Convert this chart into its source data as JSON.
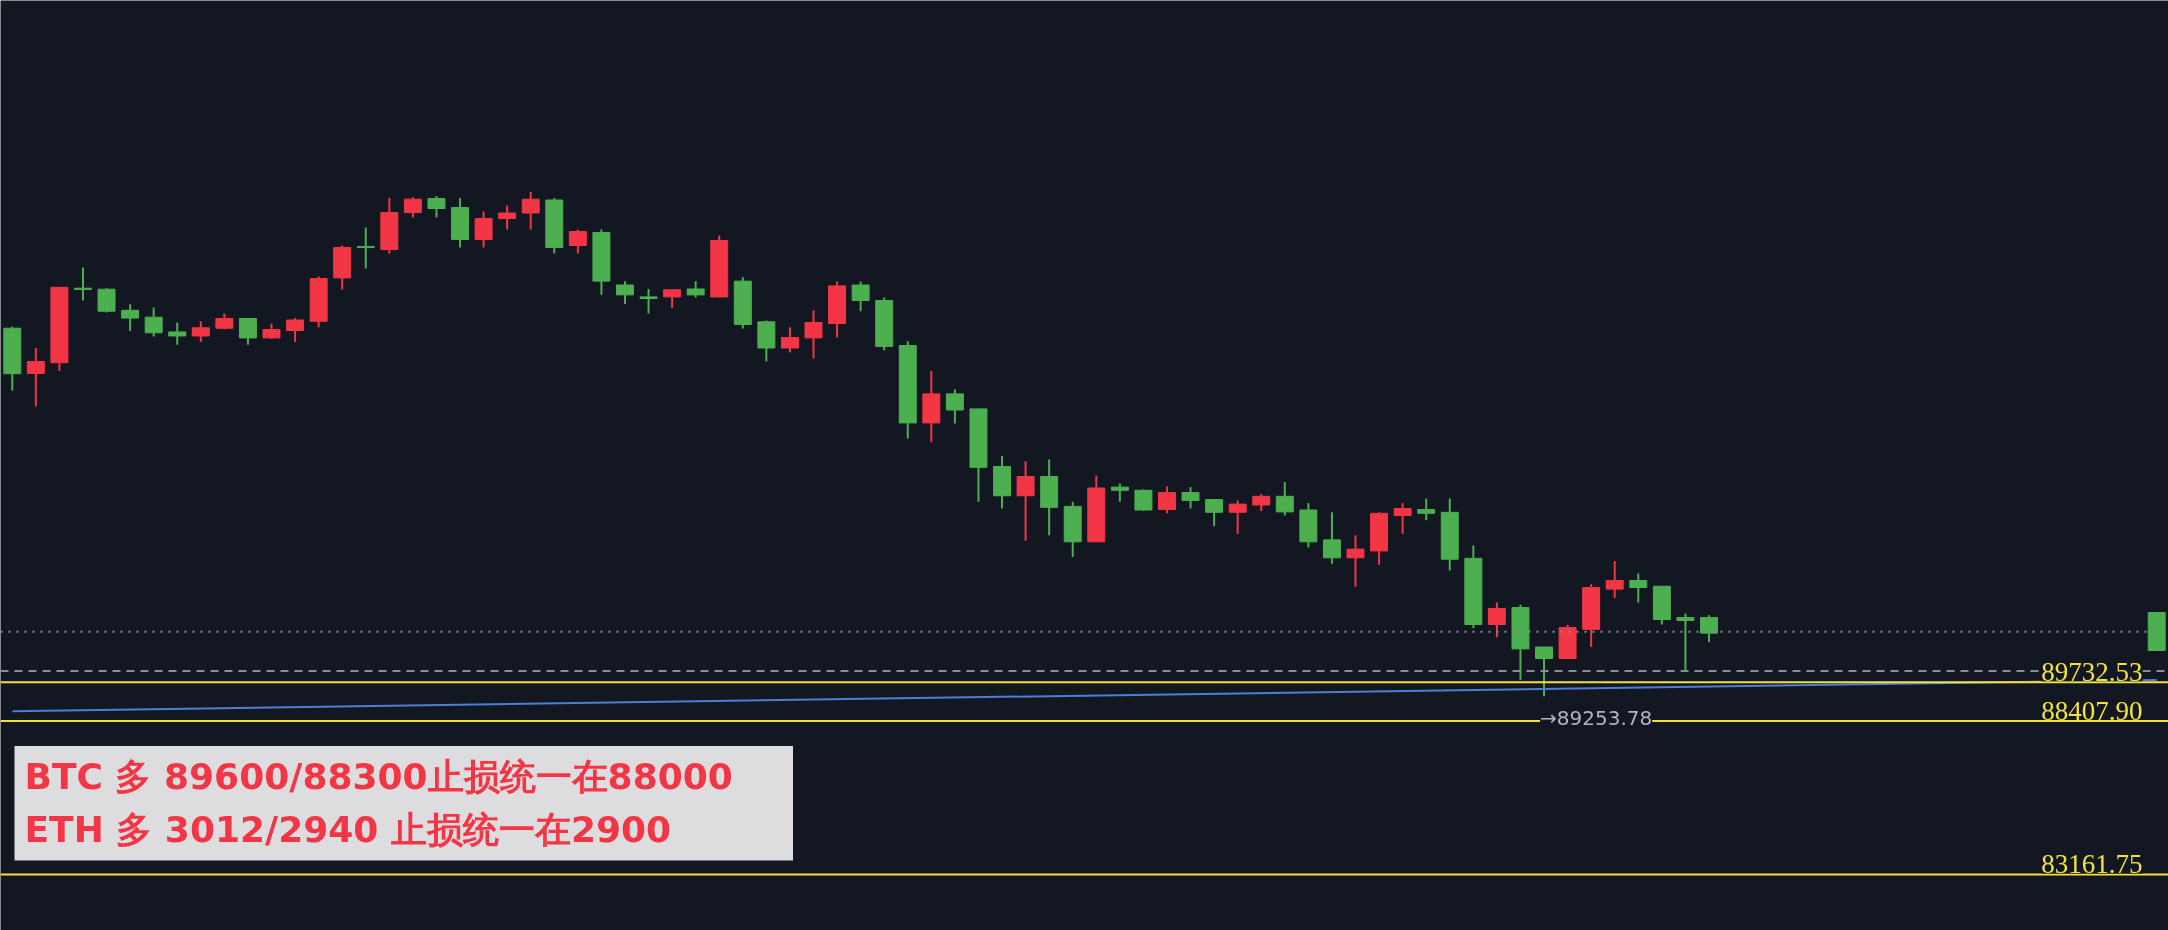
{
  "chart_data": {
    "type": "candlestick",
    "tick_labels": false,
    "ylim": [
      81243,
      113049
    ],
    "categories": [
      null,
      null,
      null,
      null,
      null,
      null,
      null,
      null,
      null,
      null,
      null,
      null,
      null,
      null,
      null,
      null,
      null,
      null,
      null,
      null,
      null,
      null,
      null,
      null,
      null,
      null,
      null,
      null,
      null,
      null,
      null,
      null,
      null,
      null,
      null,
      null,
      null,
      null,
      null,
      null,
      null,
      null,
      null,
      null,
      null,
      null,
      null,
      null,
      null,
      null,
      null,
      null,
      null,
      null,
      null,
      null,
      null,
      null,
      null,
      null,
      null,
      null,
      null,
      null,
      null,
      null,
      null,
      null,
      null,
      null,
      null,
      null,
      null,
      null,
      null,
      null,
      null,
      null,
      null,
      null,
      null,
      null,
      null,
      null,
      null,
      null,
      null,
      null,
      null,
      null,
      null,
      null
    ],
    "ohlc": [
      [
        101842,
        101900,
        99704,
        100286
      ],
      [
        100293,
        101164,
        99164,
        100703
      ],
      [
        100662,
        103240,
        100378,
        103240
      ],
      [
        103210,
        103918,
        102789,
        103165
      ],
      [
        103175,
        103210,
        102379,
        102423
      ],
      [
        102454,
        102659,
        101746,
        102187
      ],
      [
        102218,
        102550,
        101558,
        101684
      ],
      [
        101715,
        102037,
        101274,
        101575
      ],
      [
        101575,
        102078,
        101370,
        101855
      ],
      [
        101842,
        102344,
        101797,
        102173
      ],
      [
        102173,
        102187,
        101274,
        101510
      ],
      [
        101510,
        102002,
        101479,
        101797
      ],
      [
        101763,
        102187,
        101370,
        102122
      ],
      [
        102078,
        103610,
        101872,
        103541
      ],
      [
        103562,
        104670,
        103165,
        104602
      ],
      [
        104636,
        105286,
        103883,
        104602
      ],
      [
        104533,
        106294,
        104396,
        105799
      ],
      [
        105799,
        106322,
        105628,
        106253
      ],
      [
        106277,
        106363,
        105628,
        105935
      ],
      [
        105970,
        106294,
        104602,
        104875
      ],
      [
        104875,
        105833,
        104602,
        105593
      ],
      [
        105593,
        106038,
        105217,
        105781
      ],
      [
        105781,
        106500,
        105217,
        106253
      ],
      [
        106226,
        106294,
        104396,
        104602
      ],
      [
        104670,
        105217,
        104396,
        105149
      ],
      [
        105115,
        105217,
        102981,
        103452
      ],
      [
        103319,
        103452,
        102669,
        102981
      ],
      [
        102912,
        103182,
        102344,
        102857
      ],
      [
        102912,
        103182,
        102532,
        103155
      ],
      [
        103182,
        103452,
        102892,
        102981
      ],
      [
        102912,
        105012,
        102892,
        104841
      ],
      [
        103452,
        103589,
        101831,
        101968
      ],
      [
        102061,
        102105,
        100703,
        101164
      ],
      [
        101164,
        101872,
        101011,
        101524
      ],
      [
        101510,
        102454,
        100805,
        102037
      ],
      [
        102002,
        103439,
        101524,
        103288
      ],
      [
        103319,
        103439,
        102423,
        102789
      ],
      [
        102789,
        102892,
        101086,
        101216
      ],
      [
        101250,
        101400,
        98069,
        98603
      ],
      [
        98603,
        100378,
        97943,
        99595
      ],
      [
        99595,
        99752,
        98582,
        99044
      ],
      [
        99082,
        99082,
        95905,
        97084
      ],
      [
        97112,
        97478,
        95675,
        96110
      ],
      [
        96110,
        97290,
        94571,
        96770
      ],
      [
        96770,
        97351,
        94759,
        95716
      ],
      [
        95747,
        95905,
        94020,
        94537
      ],
      [
        94537,
        96804,
        94537,
        96376
      ],
      [
        96407,
        96530,
        95905,
        96298
      ],
      [
        96298,
        96329,
        95590,
        95624
      ],
      [
        95641,
        96428,
        95511,
        96223
      ],
      [
        96223,
        96407,
        95675,
        95949
      ],
      [
        95983,
        95983,
        95073,
        95545
      ],
      [
        95545,
        95949,
        94807,
        95826
      ],
      [
        95795,
        96171,
        95590,
        96093
      ],
      [
        96093,
        96582,
        95436,
        95559
      ],
      [
        95624,
        95860,
        94342,
        94537
      ],
      [
        94602,
        95545,
        93784,
        93989
      ],
      [
        93989,
        94759,
        92998,
        94287
      ],
      [
        94225,
        95545,
        93753,
        95511
      ],
      [
        95436,
        95860,
        94807,
        95675
      ],
      [
        95641,
        96017,
        95279,
        95511
      ],
      [
        95545,
        96017,
        93555,
        93941
      ],
      [
        93972,
        94410,
        91585,
        91708
      ],
      [
        91708,
        92461,
        91274,
        92255
      ],
      [
        92290,
        92382,
        89817,
        90874
      ],
      [
        90939,
        90939,
        89253.78,
        90545
      ],
      [
        90545,
        91695,
        90545,
        91606
      ],
      [
        91544,
        93086,
        90939,
        92974
      ],
      [
        92919,
        93873,
        92614,
        93213
      ],
      [
        93213,
        93452,
        92461,
        92974
      ],
      [
        93018,
        93018,
        91708,
        91879
      ],
      [
        91948,
        92084,
        90101,
        91845
      ],
      [
        91948,
        92030,
        91106,
        91411
      ],
      null,
      null,
      null,
      null,
      null,
      null,
      null,
      null,
      null,
      null,
      null,
      null,
      null,
      null,
      null,
      null,
      null,
      null,
      [
        92119,
        92119,
        90819,
        90819
      ]
    ],
    "colors": [
      "#4caf50",
      "#f23645",
      "#f23645",
      "#4caf50",
      "#4caf50",
      "#4caf50",
      "#4caf50",
      "#4caf50",
      "#f23645",
      "#f23645",
      "#4caf50",
      "#f23645",
      "#f23645",
      "#f23645",
      "#f23645",
      "#4caf50",
      "#f23645",
      "#f23645",
      "#4caf50",
      "#4caf50",
      "#f23645",
      "#f23645",
      "#f23645",
      "#4caf50",
      "#f23645",
      "#4caf50",
      "#4caf50",
      "#4caf50",
      "#f23645",
      "#4caf50",
      "#f23645",
      "#4caf50",
      "#4caf50",
      "#f23645",
      "#f23645",
      "#f23645",
      "#4caf50",
      "#4caf50",
      "#4caf50",
      "#f23645",
      "#4caf50",
      "#4caf50",
      "#4caf50",
      "#f23645",
      "#4caf50",
      "#4caf50",
      "#f23645",
      "#4caf50",
      "#4caf50",
      "#f23645",
      "#4caf50",
      "#4caf50",
      "#f23645",
      "#f23645",
      "#4caf50",
      "#4caf50",
      "#4caf50",
      "#f23645",
      "#f23645",
      "#f23645",
      "#4caf50",
      "#4caf50",
      "#4caf50",
      "#f23645",
      "#4caf50",
      "#4caf50",
      "#f23645",
      "#f23645",
      "#f23645",
      "#4caf50",
      "#4caf50",
      "#4caf50",
      "#4caf50",
      null,
      null,
      null,
      null,
      null,
      null,
      null,
      null,
      null,
      null,
      null,
      null,
      null,
      null,
      null,
      null,
      null,
      null,
      "#4caf50"
    ],
    "series": [
      {
        "type": "line",
        "values": [
          88740,
          null,
          null,
          null,
          null,
          null,
          null,
          null,
          null,
          null,
          null,
          null,
          null,
          null,
          null,
          null,
          null,
          null,
          null,
          null,
          null,
          null,
          null,
          null,
          null,
          null,
          null,
          null,
          null,
          null,
          null,
          null,
          null,
          null,
          null,
          null,
          null,
          null,
          null,
          null,
          null,
          null,
          null,
          null,
          null,
          null,
          null,
          null,
          null,
          null,
          null,
          null,
          null,
          null,
          null,
          null,
          null,
          null,
          null,
          null,
          null,
          null,
          null,
          null,
          null,
          null,
          null,
          null,
          null,
          null,
          null,
          null,
          null,
          null,
          null,
          null,
          null,
          null,
          null,
          null,
          null,
          null,
          null,
          null,
          null,
          null,
          null,
          null,
          null,
          null,
          null,
          89810
        ],
        "color": "#4d7dd8"
      }
    ],
    "ref_lines": [
      {
        "axis": "y",
        "value": 89732.53,
        "label": "89732.53",
        "color": "#f2e33c"
      },
      {
        "axis": "y",
        "value": 88407.9,
        "label": "88407.90",
        "color": "#f2e33c"
      },
      {
        "axis": "y",
        "value": 83161.75,
        "label": "83161.75",
        "color": "#f2e33c"
      },
      {
        "axis": "y",
        "value": 91459,
        "color": "#8a8d96",
        "line_style": "dotted"
      },
      {
        "axis": "y",
        "value": 90121,
        "color": "#8a8d96",
        "line_style": "dashed"
      }
    ],
    "annotations": [
      "BTC   多   89600/88300止损统一在88000",
      "ETH  多   3012/2940    止损统一在2900",
      "→89253.78"
    ]
  }
}
